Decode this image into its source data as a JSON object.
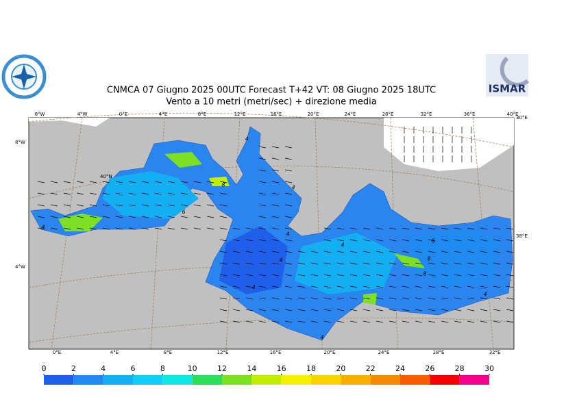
{
  "title": "CNMCA 07   Giugno  2025 00UTC Forecast T+42 VT: 08   Giugno  2025 18UTC",
  "subtitle": "Vento a 10 metri (metri/sec) + direzione media",
  "logo_text": "ISMAR",
  "top_lon_labels": [
    "8°W",
    "4°W",
    "0°E",
    "4°E",
    "8°E",
    "12°E",
    "16°E",
    "20°E",
    "24°E",
    "28°E",
    "32°E",
    "36°E",
    "40°E"
  ],
  "bottom_lon_labels": [
    "0°E",
    "4°E",
    "8°E",
    "12°E",
    "16°E",
    "20°E",
    "24°E",
    "28°E",
    "32°E"
  ],
  "side_labels": [
    "8°W",
    "4°W",
    "40°N",
    "30°E",
    "38°E"
  ],
  "contour_labels": [
    "4",
    "4",
    "6",
    "8",
    "4",
    "4",
    "4",
    "4",
    "4",
    "8",
    "8",
    "4",
    "6",
    "4"
  ],
  "colorbar": {
    "ticks": [
      0,
      2,
      4,
      6,
      8,
      10,
      12,
      14,
      16,
      18,
      20,
      22,
      24,
      26,
      28,
      30
    ],
    "colors": [
      "#1f5fea",
      "#1f8aef",
      "#14aef2",
      "#12cdf7",
      "#10e6e0",
      "#2ede5a",
      "#7ee024",
      "#c4ee00",
      "#f4f000",
      "#f8d400",
      "#f8b000",
      "#f88a00",
      "#f85c00",
      "#f40000",
      "#f4008c"
    ]
  }
}
